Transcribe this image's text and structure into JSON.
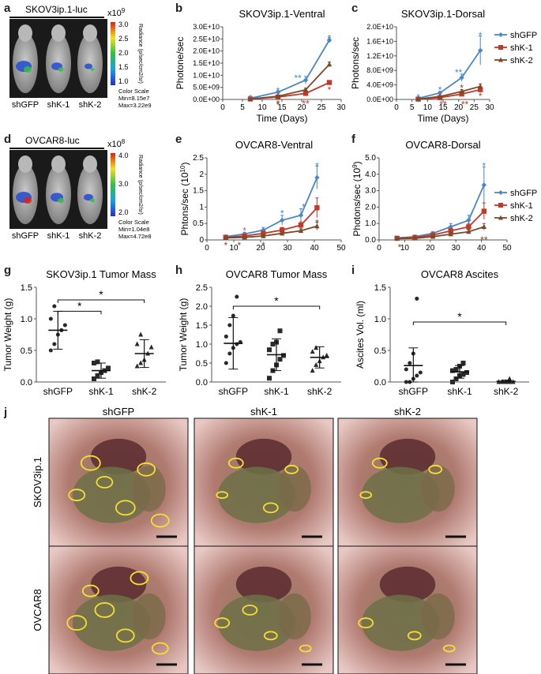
{
  "imaging": [
    {
      "letter": "a",
      "title": "SKOV3ip.1-luc",
      "exponent": "x10",
      "exp_sup": "9",
      "scale_ticks": [
        "3.0",
        "2.5",
        "2.0",
        "1.5",
        "1.0"
      ],
      "radiance_label": "Radiance (p/sec/cm2/sr)",
      "labels": [
        "shGFP",
        "shK-1",
        "shK-2"
      ],
      "color_scale": [
        "Color Scale",
        "Min=8.15e7",
        "Max=3.22e9"
      ]
    },
    {
      "letter": "d",
      "title": "OVCAR8-luc",
      "exponent": "x10",
      "exp_sup": "8",
      "scale_ticks": [
        "4.0",
        "3.0",
        "2.0"
      ],
      "radiance_label": "Radiance (p/sec/cm2/sr)",
      "labels": [
        "shGFP",
        "shK-1",
        "shK-2"
      ],
      "color_scale": [
        "Color Scale",
        "Min=1.04e8",
        "Max=4.72e8"
      ]
    }
  ],
  "legend": [
    "shGFP",
    "shK-1",
    "shK-2"
  ],
  "colors": {
    "shGFP": "#4a86c8",
    "shK-1": "#c0392b",
    "shK-2": "#7a4a2a"
  },
  "chart_data": [
    {
      "letter": "b",
      "type": "line",
      "title": "SKOV3ip.1-Ventral",
      "xlabel": "Time (Days)",
      "ylabel": "Photone/sec",
      "xlim": [
        0,
        30
      ],
      "xticks": [
        "0",
        "5",
        "10",
        "15",
        "20",
        "25",
        "30"
      ],
      "ylim": [
        0,
        30000000000.0
      ],
      "ytick_labels": [
        "0.0E+00",
        "5.0E+09",
        "1.0E+10",
        "1.5E+10",
        "2.0E+10",
        "2.5E+10",
        "3.0E+10"
      ],
      "x": [
        7,
        14,
        21,
        27
      ],
      "series": [
        {
          "name": "shGFP",
          "values": [
            500000000.0,
            3000000000.0,
            8000000000.0,
            24500000000.0
          ],
          "err": [
            100000000.0,
            500000000.0,
            1500000000.0,
            1000000000.0
          ]
        },
        {
          "name": "shK-1",
          "values": [
            200000000.0,
            1000000000.0,
            2500000000.0,
            7000000000.0
          ],
          "err": [
            100000000.0,
            300000000.0,
            500000000.0,
            800000000.0
          ]
        },
        {
          "name": "shK-2",
          "values": [
            200000000.0,
            1300000000.0,
            4000000000.0,
            14500000000.0
          ],
          "err": [
            100000000.0,
            300000000.0,
            600000000.0,
            1000000000.0
          ]
        }
      ],
      "asterisks": [
        {
          "x": 7,
          "y": 1200000000.0,
          "text": "*",
          "color": "#4a86c8"
        },
        {
          "x": 14,
          "y": 4200000000.0,
          "text": "*",
          "color": "#4a86c8"
        },
        {
          "x": 19,
          "y": 9500000000.0,
          "text": "**",
          "color": "#4a86c8"
        },
        {
          "x": 27,
          "y": 26000000000.0,
          "text": "*",
          "color": "#4a86c8"
        },
        {
          "x": 14,
          "y": -1200000000.0,
          "text": "*",
          "color": "#c0392b"
        },
        {
          "x": 21,
          "y": -1200000000.0,
          "text": "**",
          "color": "#c0392b"
        },
        {
          "x": 27,
          "y": 4500000000.0,
          "text": "*",
          "color": "#c0392b"
        },
        {
          "x": 14,
          "y": -1700000000.0,
          "text": "*",
          "color": "#7a4a2a"
        }
      ]
    },
    {
      "letter": "c",
      "type": "line",
      "title": "SKOV3ip.1-Dorsal",
      "xlabel": "Time (Days)",
      "ylabel": "Photons/sec",
      "xlim": [
        0,
        30
      ],
      "xticks": [
        "0",
        "5",
        "10",
        "15",
        "20",
        "25",
        "30"
      ],
      "ylim": [
        0,
        20000000000.0
      ],
      "ytick_labels": [
        "0.0E+00",
        "4.0E+09",
        "8.0E+09",
        "1.2E+10",
        "1.6E+10",
        "2.0E+10"
      ],
      "x": [
        7,
        14,
        21,
        27
      ],
      "series": [
        {
          "name": "shGFP",
          "values": [
            300000000.0,
            1800000000.0,
            6000000000.0,
            13500000000.0
          ],
          "err": [
            100000000.0,
            400000000.0,
            1000000000.0,
            4000000000.0
          ]
        },
        {
          "name": "shK-1",
          "values": [
            100000000.0,
            500000000.0,
            1500000000.0,
            2700000000.0
          ],
          "err": [
            100000000.0,
            200000000.0,
            400000000.0,
            600000000.0
          ]
        },
        {
          "name": "shK-2",
          "values": [
            100000000.0,
            800000000.0,
            2200000000.0,
            3600000000.0
          ],
          "err": [
            100000000.0,
            200000000.0,
            500000000.0,
            700000000.0
          ]
        }
      ],
      "asterisks": [
        {
          "x": 7,
          "y": 1000000000.0,
          "text": "*",
          "color": "#4a86c8"
        },
        {
          "x": 14,
          "y": 3000000000.0,
          "text": "*",
          "color": "#4a86c8"
        },
        {
          "x": 20,
          "y": 7800000000.0,
          "text": "**",
          "color": "#4a86c8"
        },
        {
          "x": 27,
          "y": 18000000000.0,
          "text": "*",
          "color": "#4a86c8"
        },
        {
          "x": 15,
          "y": -1000000000.0,
          "text": "**",
          "color": "#c0392b"
        },
        {
          "x": 22,
          "y": -1000000000.0,
          "text": "**",
          "color": "#c0392b"
        },
        {
          "x": 27,
          "y": 1300000000.0,
          "text": "*",
          "color": "#c0392b"
        },
        {
          "x": 21,
          "y": 3600000000.0,
          "text": "*",
          "color": "#7a4a2a"
        }
      ]
    },
    {
      "letter": "e",
      "type": "line",
      "title": "OVCAR8-Ventral",
      "xlabel": "",
      "ylabel": "Phtons/sec (10",
      "ylabel_sup": "10",
      "ylabel_end": ")",
      "xlim": [
        0,
        50
      ],
      "xticks": [
        "0",
        "10",
        "20",
        "30",
        "40",
        "50"
      ],
      "ylim": [
        0,
        2.5
      ],
      "ytick_labels": [
        "0",
        "0.5",
        "1",
        "1.5",
        "2",
        "2.5"
      ],
      "x": [
        7,
        14,
        21,
        28,
        35,
        41
      ],
      "series": [
        {
          "name": "shGFP",
          "values": [
            0.1,
            0.18,
            0.3,
            0.6,
            0.75,
            1.9
          ],
          "err": [
            0.03,
            0.05,
            0.08,
            0.15,
            0.2,
            0.35
          ]
        },
        {
          "name": "shK-1",
          "values": [
            0.08,
            0.12,
            0.2,
            0.3,
            0.45,
            0.98
          ],
          "err": [
            0.03,
            0.04,
            0.06,
            0.08,
            0.1,
            0.3
          ]
        },
        {
          "name": "shK-2",
          "values": [
            0.06,
            0.08,
            0.12,
            0.2,
            0.28,
            0.42
          ],
          "err": [
            0.02,
            0.03,
            0.04,
            0.05,
            0.06,
            0.12
          ]
        }
      ],
      "asterisks": [
        {
          "x": 14,
          "y": 0.32,
          "text": "*",
          "color": "#4a86c8"
        },
        {
          "x": 28,
          "y": 0.85,
          "text": "*",
          "color": "#4a86c8"
        },
        {
          "x": 36,
          "y": 1.05,
          "text": "*",
          "color": "#4a86c8"
        },
        {
          "x": 41,
          "y": 2.3,
          "text": "*",
          "color": "#4a86c8"
        },
        {
          "x": 7,
          "y": -0.12,
          "text": "*",
          "color": "#7a4a2a"
        },
        {
          "x": 12,
          "y": -0.12,
          "text": "*",
          "color": "#7a4a2a"
        },
        {
          "x": 21,
          "y": -0.12,
          "text": "*",
          "color": "#7a4a2a"
        },
        {
          "x": 41,
          "y": 0.56,
          "text": "*",
          "color": "#7a4a2a"
        }
      ]
    },
    {
      "letter": "f",
      "type": "line",
      "title": "OVCAR8-Dorsal",
      "xlabel": "",
      "ylabel": "Photons/sec (10",
      "ylabel_sup": "9",
      "ylabel_end": ")",
      "xlim": [
        0,
        50
      ],
      "xticks": [
        "0",
        "10",
        "20",
        "30",
        "40",
        "50"
      ],
      "ylim": [
        0,
        5.0
      ],
      "ytick_labels": [
        "0.0",
        "1.0",
        "2.0",
        "3.0",
        "4.0",
        "5.0"
      ],
      "x": [
        7,
        14,
        21,
        28,
        35,
        41
      ],
      "series": [
        {
          "name": "shGFP",
          "values": [
            0.12,
            0.2,
            0.4,
            0.8,
            1.2,
            3.35
          ],
          "err": [
            0.05,
            0.08,
            0.1,
            0.2,
            0.3,
            1.1
          ]
        },
        {
          "name": "shK-1",
          "values": [
            0.1,
            0.15,
            0.3,
            0.55,
            0.8,
            1.75
          ],
          "err": [
            0.05,
            0.06,
            0.08,
            0.15,
            0.2,
            0.5
          ]
        },
        {
          "name": "shK-2",
          "values": [
            0.08,
            0.1,
            0.2,
            0.35,
            0.5,
            0.8
          ],
          "err": [
            0.04,
            0.05,
            0.06,
            0.1,
            0.12,
            0.2
          ]
        }
      ],
      "asterisks": [
        {
          "x": 41,
          "y": 4.6,
          "text": "*",
          "color": "#4a86c8"
        },
        {
          "x": 41,
          "y": 0.1,
          "text": "**",
          "color": "#7a4a2a"
        },
        {
          "x": 8,
          "y": -0.35,
          "text": "*",
          "color": "#7a4a2a"
        }
      ]
    },
    {
      "letter": "g",
      "type": "scatter",
      "title": "SKOV3ip.1 Tumor Mass",
      "ylabel": "Tumor Weight (g)",
      "categories": [
        "shGFP",
        "shK-1",
        "shK-2"
      ],
      "ylim": [
        0,
        1.5
      ],
      "ytick_labels": [
        "0.0",
        "0.5",
        "1.0",
        "1.5"
      ],
      "markers": [
        "circle",
        "square",
        "triangle"
      ],
      "points": [
        [
          0.5,
          0.6,
          0.75,
          0.82,
          0.9,
          1.0,
          1.2
        ],
        [
          0.05,
          0.1,
          0.15,
          0.18,
          0.22,
          0.3,
          0.32
        ],
        [
          0.25,
          0.3,
          0.35,
          0.45,
          0.55,
          0.6,
          0.75
        ]
      ],
      "means": [
        0.82,
        0.18,
        0.45
      ],
      "sd": [
        0.3,
        0.12,
        0.22
      ],
      "brackets": [
        {
          "from": 0,
          "to": 1,
          "level": 1.12,
          "text": "*"
        },
        {
          "from": 0,
          "to": 2,
          "level": 1.3,
          "text": "*"
        }
      ]
    },
    {
      "letter": "h",
      "type": "scatter",
      "title": "OVCAR8 Tumor Mass",
      "ylabel": "Tumor Weight (g)",
      "categories": [
        "shGFP",
        "shK-1",
        "shK-2"
      ],
      "ylim": [
        0,
        2.5
      ],
      "ytick_labels": [
        "0.0",
        "0.5",
        "1.0",
        "1.5",
        "2.0",
        "2.5"
      ],
      "markers": [
        "circle",
        "square",
        "triangle"
      ],
      "points": [
        [
          0.5,
          0.75,
          0.9,
          1.0,
          1.05,
          1.2,
          1.5,
          1.75,
          2.25
        ],
        [
          0.1,
          0.3,
          0.45,
          0.6,
          0.7,
          0.85,
          1.0,
          1.05,
          1.35
        ],
        [
          0.3,
          0.45,
          0.55,
          0.65,
          0.7,
          0.8,
          0.9
        ]
      ],
      "means": [
        1.02,
        0.72,
        0.65
      ],
      "sd": [
        0.68,
        0.42,
        0.28
      ],
      "brackets": [
        {
          "from": 0,
          "to": 2,
          "level": 2.0,
          "text": "*"
        }
      ]
    },
    {
      "letter": "i",
      "type": "scatter",
      "title": "OVCAR8 Ascites",
      "ylabel": "Ascites Vol. (ml)",
      "categories": [
        "shGFP",
        "shK-1",
        "shK-2"
      ],
      "ylim": [
        0,
        1.5
      ],
      "ytick_labels": [
        "0.0",
        "0.5",
        "1.0",
        "1.5"
      ],
      "markers": [
        "circle",
        "square",
        "triangle"
      ],
      "points": [
        [
          0.0,
          0.0,
          0.05,
          0.1,
          0.15,
          0.2,
          0.3,
          0.45,
          1.32
        ],
        [
          0.0,
          0.05,
          0.1,
          0.12,
          0.15,
          0.18,
          0.2,
          0.25,
          0.3
        ],
        [
          0.0,
          0.0,
          0.0,
          0.0,
          0.0,
          0.0,
          0.0,
          0.0,
          0.05
        ]
      ],
      "means": [
        0.26,
        0.16,
        0.01
      ],
      "sd": [
        0.28,
        0.1,
        0.02
      ],
      "brackets": [
        {
          "from": 0,
          "to": 2,
          "level": 0.95,
          "text": "*"
        }
      ]
    }
  ],
  "photos": {
    "letter": "j",
    "col_labels": [
      "shGFP",
      "shK-1",
      "shK-2"
    ],
    "row_labels": [
      "SKOV3ip.1",
      "OVCAR8"
    ]
  }
}
